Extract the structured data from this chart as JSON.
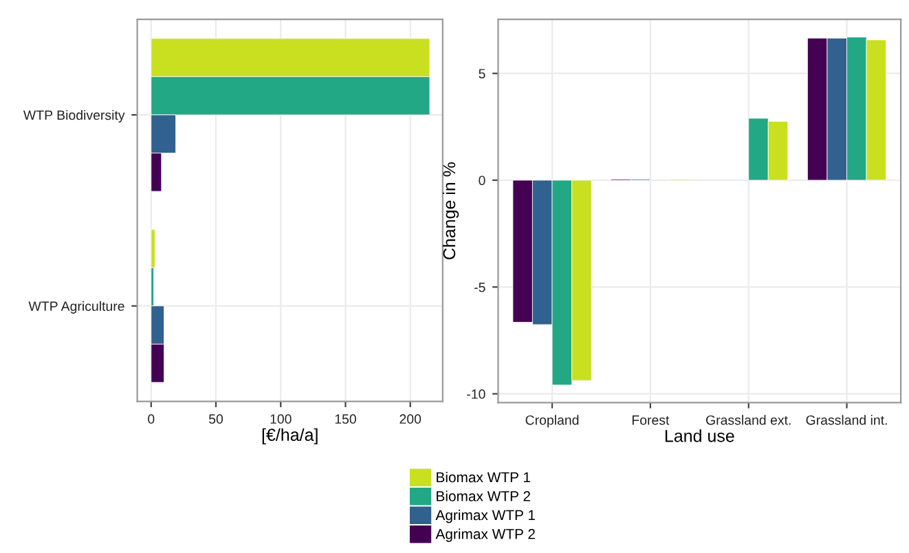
{
  "chart_data": [
    {
      "type": "bar",
      "orientation": "horizontal",
      "categories": [
        "WTP Biodiversity",
        "WTP Agriculture"
      ],
      "xlabel": "[€/ha/a]",
      "series": [
        {
          "name": "Biomax WTP 1",
          "color": "#c8e020",
          "values": [
            215,
            3
          ]
        },
        {
          "name": "Biomax WTP 2",
          "color": "#22a884",
          "values": [
            215,
            2
          ]
        },
        {
          "name": "Agrimax WTP 1",
          "color": "#31618e",
          "values": [
            19,
            10
          ]
        },
        {
          "name": "Agrimax WTP 2",
          "color": "#440154",
          "values": [
            8,
            10
          ]
        }
      ],
      "xlim": [
        -10.7,
        225
      ],
      "xticks": [
        0,
        50,
        100,
        150,
        200
      ],
      "grid": true,
      "legend": "bottom"
    },
    {
      "type": "bar",
      "categories": [
        "Cropland",
        "Forest",
        "Grassland ext.",
        "Grassland int."
      ],
      "xlabel": "Land use",
      "ylabel": "Change in %",
      "series": [
        {
          "name": "Agrimax WTP 2",
          "color": "#440154",
          "values": [
            -6.65,
            0.05,
            null,
            6.65
          ]
        },
        {
          "name": "Agrimax WTP 1",
          "color": "#31618e",
          "values": [
            -6.76,
            0.05,
            null,
            6.65
          ]
        },
        {
          "name": "Biomax WTP 2",
          "color": "#22a884",
          "values": [
            -9.59,
            null,
            2.9,
            6.7
          ]
        },
        {
          "name": "Biomax WTP 1",
          "color": "#c8e020",
          "values": [
            -9.38,
            0.05,
            2.75,
            6.57
          ]
        }
      ],
      "ylim": [
        -10.41,
        7.53
      ],
      "yticks": [
        -10,
        -5,
        0,
        5
      ],
      "grid": true
    }
  ]
}
